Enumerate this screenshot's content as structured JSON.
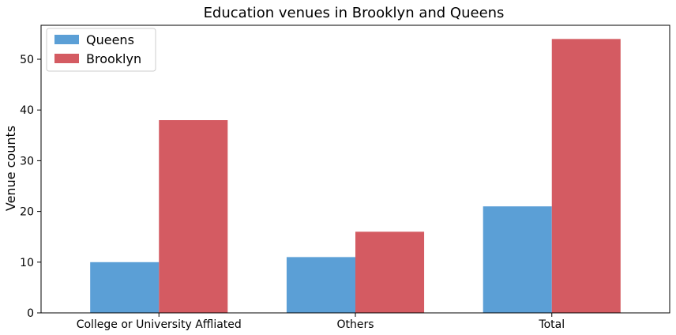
{
  "chart_data": {
    "type": "bar",
    "title": "Education venues in Brooklyn and Queens",
    "xlabel": "",
    "ylabel": "Venue counts",
    "categories": [
      "College or University Affliated",
      "Others",
      "Total"
    ],
    "series": [
      {
        "name": "Queens",
        "values": [
          10,
          11,
          21
        ],
        "color": "#5b9fd6"
      },
      {
        "name": "Brooklyn",
        "values": [
          38,
          16,
          54
        ],
        "color": "#d45b62"
      }
    ],
    "ylim": [
      0,
      56.7
    ],
    "yticks": [
      0,
      10,
      20,
      30,
      40,
      50
    ],
    "grid": false,
    "legend_position": "top-left"
  }
}
